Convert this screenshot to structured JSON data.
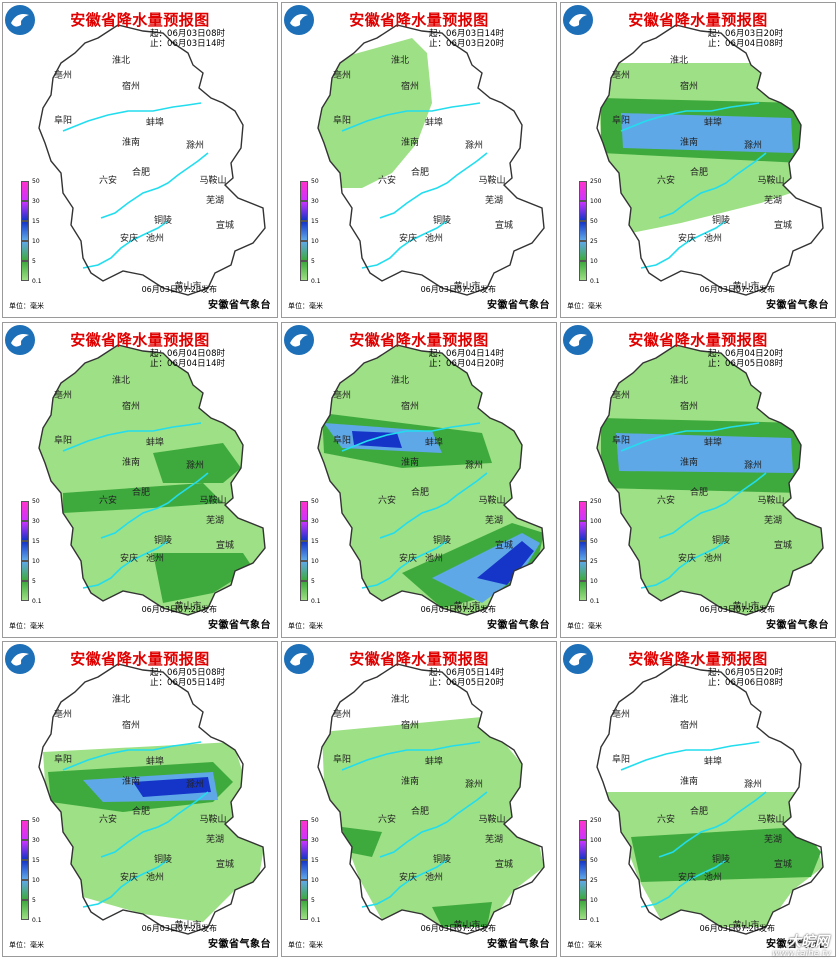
{
  "page": {
    "bg": "#ffffff"
  },
  "common": {
    "title": "安徽省降水量预报图",
    "published": "06月03日07:20发布",
    "org": "安徽省气象台",
    "unit": "单位：毫米",
    "cities": [
      "淮北",
      "亳州",
      "宿州",
      "阜阳",
      "蚌埠",
      "淮南",
      "滁州",
      "六安",
      "合肥",
      "马鞍山",
      "芜湖",
      "铜陵",
      "宣城",
      "安庆",
      "池州",
      "黄山市"
    ]
  },
  "colors": {
    "land": "#ffffff",
    "light": "#9ee085",
    "medium": "#3eaa3e",
    "heavy": "#5fa8e8",
    "storm": "#1535c8",
    "river": "#22ddee",
    "title": "#e00000"
  },
  "legends": {
    "small": [
      "50",
      "30",
      "15",
      "10",
      "5",
      "0.1"
    ],
    "large": [
      "250",
      "100",
      "50",
      "25",
      "10",
      "0.1"
    ]
  },
  "panels": [
    {
      "start": "起：06月03日08时",
      "end": "止：06月03日14时",
      "legend": "small",
      "coverage": "none"
    },
    {
      "start": "起：06月03日14时",
      "end": "止：06月03日20时",
      "legend": "small",
      "coverage": "northwest"
    },
    {
      "start": "起：06月03日20时",
      "end": "止：06月04日08时",
      "legend": "large",
      "coverage": "central-heavy"
    },
    {
      "start": "起：06月04日08时",
      "end": "止：06月04日14时",
      "legend": "small",
      "coverage": "all-light"
    },
    {
      "start": "起：06月04日14时",
      "end": "止：06月04日20时",
      "legend": "small",
      "coverage": "all-storm"
    },
    {
      "start": "起：06月04日20时",
      "end": "止：06月05日08时",
      "legend": "large",
      "coverage": "central-heavy2"
    },
    {
      "start": "起：06月05日08时",
      "end": "止：06月05日14时",
      "legend": "small",
      "coverage": "middle-storm"
    },
    {
      "start": "起：06月05日14时",
      "end": "止：06月05日20时",
      "legend": "small",
      "coverage": "south-light"
    },
    {
      "start": "起：06月05日20时",
      "end": "止：06月06日08时",
      "legend": "large",
      "coverage": "south-medium"
    }
  ],
  "watermark": {
    "brand": "大皖网",
    "url": "www.taihe.tv"
  }
}
